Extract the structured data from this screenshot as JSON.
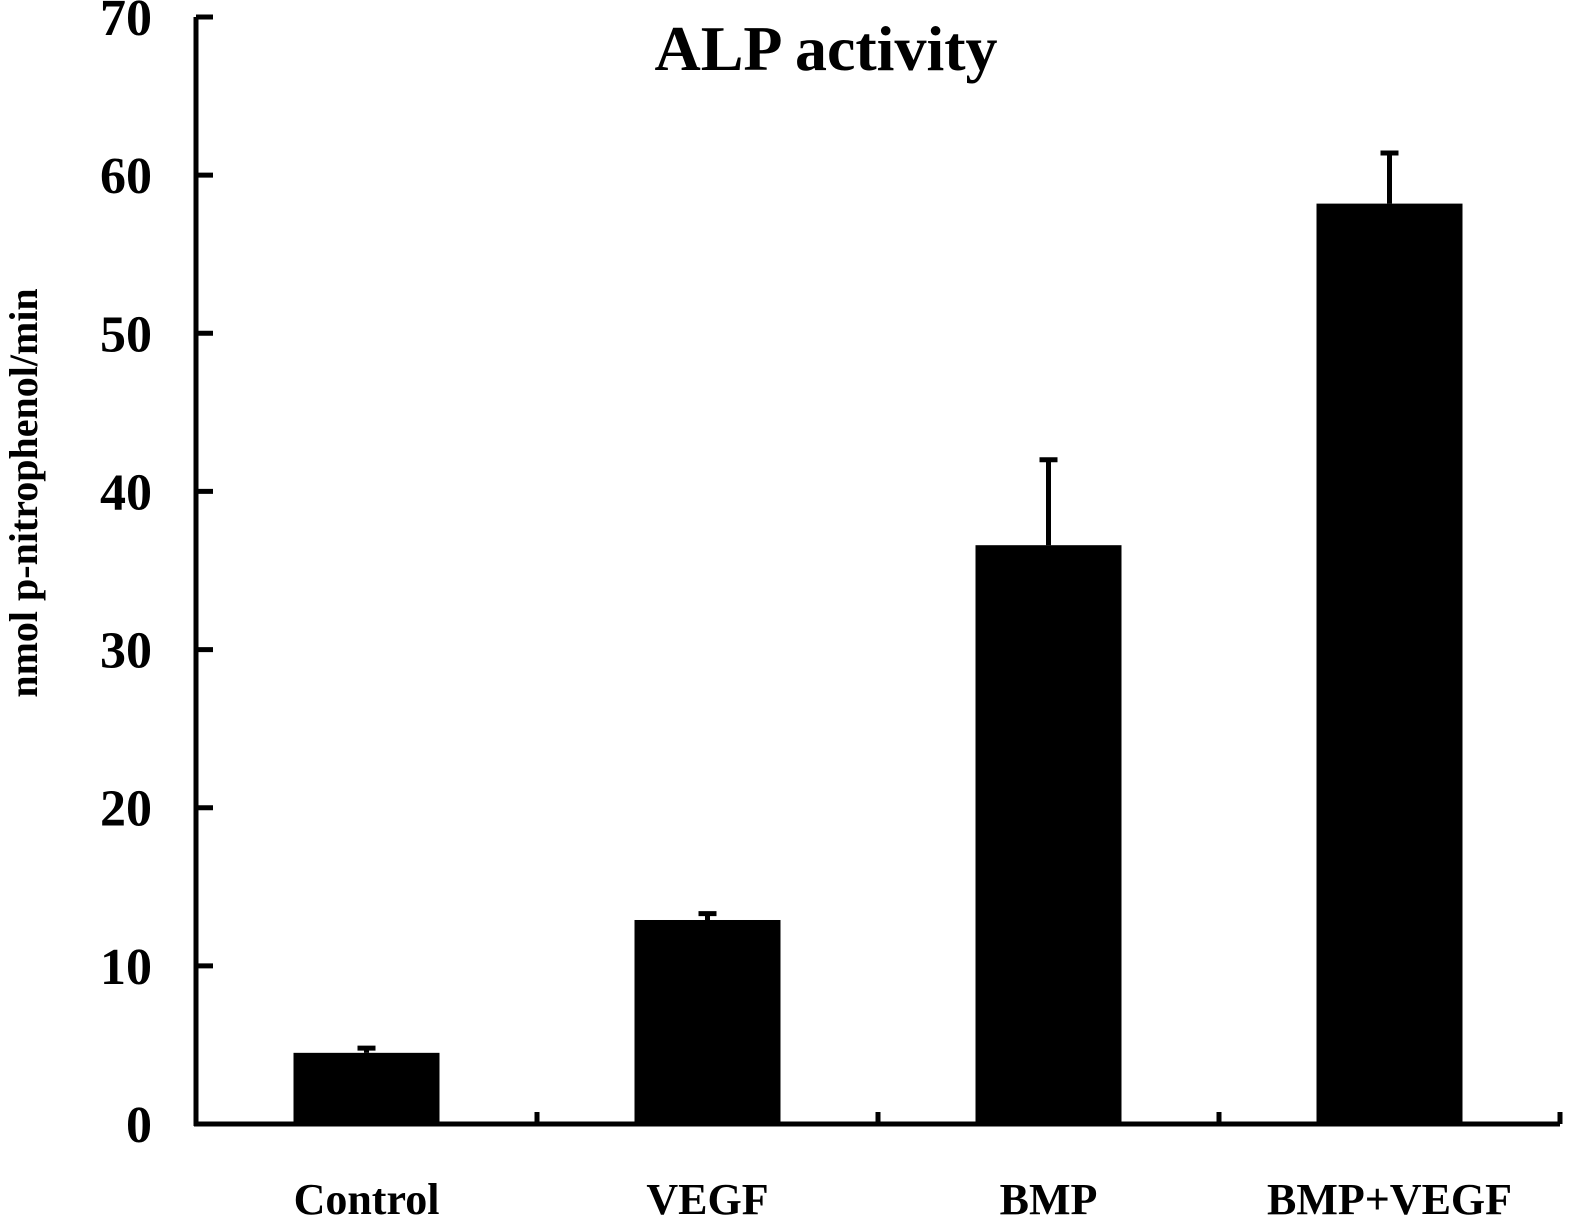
{
  "chart_data": {
    "type": "bar",
    "title": "ALP activity",
    "xlabel": "",
    "ylabel": "nmol p-nitrophenol/min",
    "ylim": [
      0,
      70
    ],
    "yticks": [
      0,
      10,
      20,
      30,
      40,
      50,
      60,
      70
    ],
    "categories": [
      "Control",
      "VEGF",
      "BMP",
      "BMP+VEGF"
    ],
    "values": [
      4.5,
      12.9,
      36.6,
      58.2
    ],
    "errors": [
      0.3,
      0.4,
      5.4,
      3.2
    ],
    "grid": false,
    "legend": "none",
    "bar_color": "#000000"
  }
}
